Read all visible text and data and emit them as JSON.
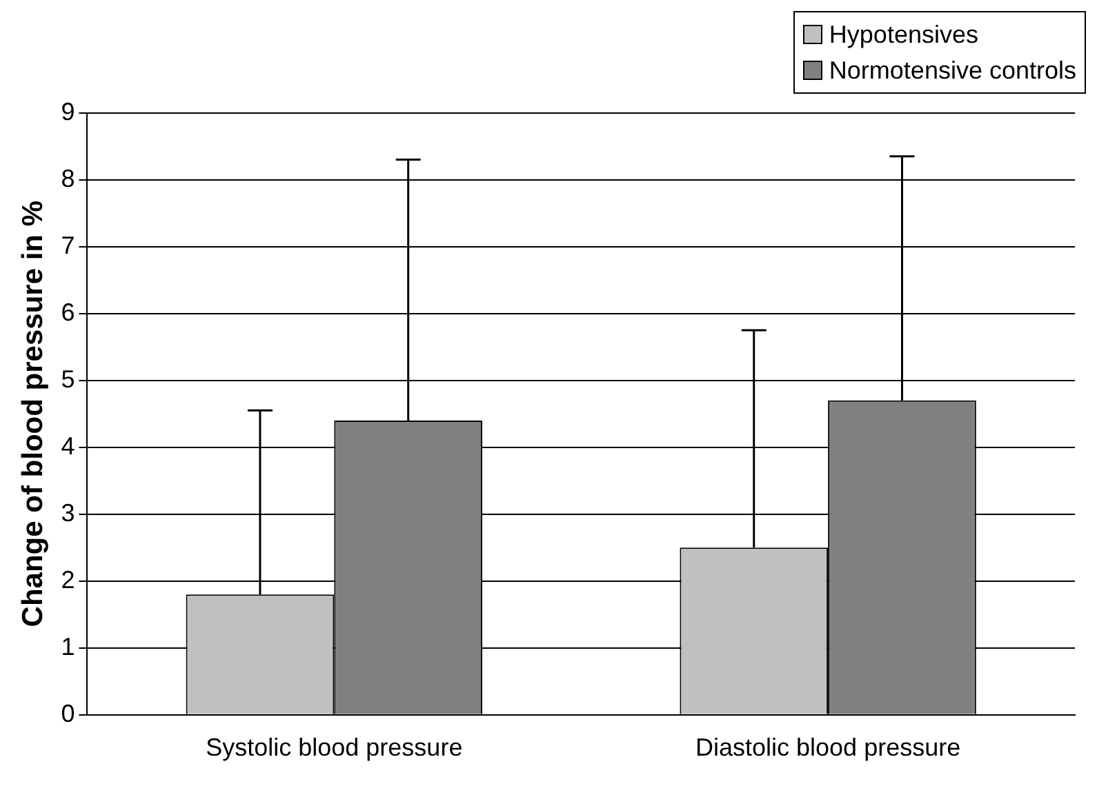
{
  "chart_data": {
    "type": "bar",
    "ylabel": "Change of blood pressure in %",
    "categories": [
      "Systolic blood pressure",
      "Diastolic blood pressure"
    ],
    "series": [
      {
        "name": "Hypotensives",
        "color": "#c0c0c0",
        "values": [
          1.8,
          2.5
        ],
        "errors": [
          [
            1.8,
            4.55
          ],
          [
            2.5,
            5.75
          ]
        ]
      },
      {
        "name": "Normotensive controls",
        "color": "#808080",
        "values": [
          4.4,
          4.7
        ],
        "errors": [
          [
            4.4,
            8.3
          ],
          [
            4.7,
            8.35
          ]
        ]
      }
    ],
    "ylim": [
      0,
      9
    ],
    "yticks": [
      0,
      1,
      2,
      3,
      4,
      5,
      6,
      7,
      8,
      9
    ],
    "grid": "y",
    "legend": "top right"
  }
}
